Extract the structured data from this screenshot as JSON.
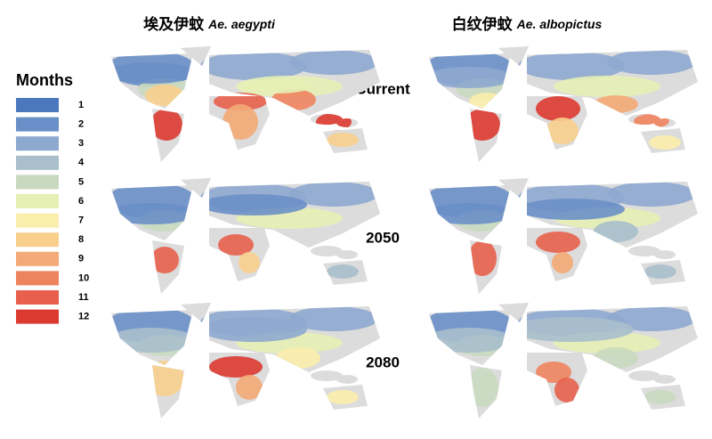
{
  "titles": [
    {
      "cn": "埃及伊蚊",
      "latin": "Ae. aegypti"
    },
    {
      "cn": "白纹伊蚊",
      "latin": "Ae. albopictus"
    }
  ],
  "rows": [
    "Current",
    "2050",
    "2080"
  ],
  "legend": {
    "title": "Months",
    "items": [
      {
        "label": "1",
        "color": "#4a77bd"
      },
      {
        "label": "2",
        "color": "#6a8fc8"
      },
      {
        "label": "3",
        "color": "#8ea9cf"
      },
      {
        "label": "4",
        "color": "#a9bfcc"
      },
      {
        "label": "5",
        "color": "#c9d9bf"
      },
      {
        "label": "6",
        "color": "#e6efb5"
      },
      {
        "label": "7",
        "color": "#fbedac"
      },
      {
        "label": "8",
        "color": "#f8cf8d"
      },
      {
        "label": "9",
        "color": "#f3aa76"
      },
      {
        "label": "10",
        "color": "#ee845f"
      },
      {
        "label": "11",
        "color": "#e8604c"
      },
      {
        "label": "12",
        "color": "#dc3a31"
      }
    ]
  }
}
